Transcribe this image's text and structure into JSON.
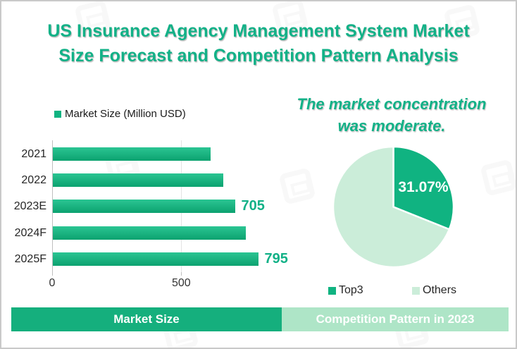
{
  "title": {
    "line1": "US Insurance Agency Management System Market",
    "line2": "Size Forecast and Competition Pattern Analysis"
  },
  "bar_section": {
    "legend_label": "Market Size (Million USD)",
    "footer_label": "Market Size"
  },
  "pie_section": {
    "subtitle_line1": "The market concentration",
    "subtitle_line2": "was moderate.",
    "slice_label": "31.07%",
    "legend": [
      {
        "label": "Top3"
      },
      {
        "label": "Others"
      }
    ],
    "footer_label": "Competition Pattern in 2023"
  },
  "chart_data": [
    {
      "type": "bar",
      "orientation": "horizontal",
      "title": "Market Size (Million USD)",
      "categories": [
        "2021",
        "2022",
        "2023E",
        "2024F",
        "2025F"
      ],
      "values": [
        610,
        660,
        705,
        747,
        795
      ],
      "data_labels": [
        "",
        "",
        "705",
        "",
        "795"
      ],
      "xlabel": "",
      "ylabel": "",
      "xlim": [
        0,
        900
      ],
      "xticks": [
        0,
        500
      ],
      "grid": "vertical-at-500",
      "units": "Million USD",
      "note": "2021, 2022 and 2024F values estimated from bar lengths"
    },
    {
      "type": "pie",
      "title": "The market concentration was moderate.",
      "labels": [
        "Top3",
        "Others"
      ],
      "values": [
        31.07,
        68.93
      ],
      "displayed_label": "31.07%",
      "start_angle_deg": 0,
      "direction": "clockwise",
      "legend_position": "bottom"
    }
  ],
  "colors": {
    "accent": "#12b187",
    "bar_gradient_top": "#2bc593",
    "bar_gradient_bottom": "#0ca26f",
    "pie_dark": "#10b381",
    "pie_light": "#cbedd9",
    "banner_left_bg": "#15af7d",
    "banner_right_bg": "#aee5c7",
    "border_gray": "#c9c9c9",
    "text_dark": "#262626",
    "white": "#ffffff"
  }
}
